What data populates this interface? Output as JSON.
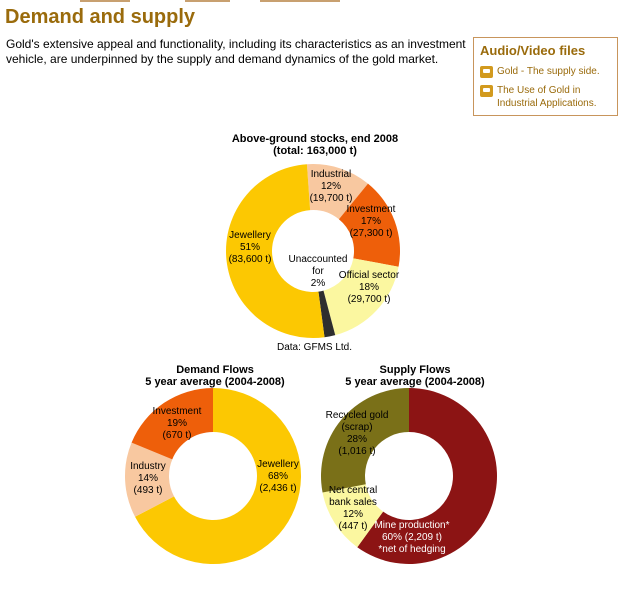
{
  "page": {
    "title": "Demand and supply",
    "intro": "Gold's extensive appeal and functionality, including its characteristics as an investment vehicle, are underpinned by the supply and demand dynamics of the gold market."
  },
  "audio_video": {
    "heading": "Audio/Video files",
    "items": [
      {
        "label": "Gold - The supply side.",
        "icon": "video-icon"
      },
      {
        "label": "The Use of Gold in Industrial Applications.",
        "icon": "video-icon"
      }
    ]
  },
  "chart_data": [
    {
      "type": "pie",
      "title": "Above-ground stocks, end 2008",
      "subtitle": "(total: 163,000 t)",
      "source": "Data: GFMS Ltd.",
      "slices": [
        {
          "name": "Industrial",
          "percent": 12,
          "label": "Industrial\n12%\n(19,700 t)",
          "color": "#f8c8a0"
        },
        {
          "name": "Investment",
          "percent": 17,
          "label": "Investment\n17%\n(27,300 t)",
          "color": "#ee5f0a"
        },
        {
          "name": "Official sector",
          "percent": 18,
          "label": "Official sector\n18%\n(29,700 t)",
          "color": "#fbf7a0"
        },
        {
          "name": "Unaccounted for",
          "percent": 2,
          "label": "Unaccounted\nfor\n2%",
          "color": "#2e2e2e"
        },
        {
          "name": "Jewellery",
          "percent": 51,
          "label": "Jewellery\n51%\n(83,600 t)",
          "color": "#fcc802"
        }
      ]
    },
    {
      "type": "pie",
      "title": "Demand Flows",
      "subtitle": "5 year average (2004-2008)",
      "slices": [
        {
          "name": "Jewellery",
          "percent": 68,
          "label": "Jewellery\n68%\n(2,436 t)",
          "color": "#fcc802"
        },
        {
          "name": "Industry",
          "percent": 14,
          "label": "Industry\n14%\n(493 t)",
          "color": "#f8c8a0"
        },
        {
          "name": "Investment",
          "percent": 19,
          "label": "Investment\n19%\n(670 t)",
          "color": "#ee5f0a"
        }
      ]
    },
    {
      "type": "pie",
      "title": "Supply Flows",
      "subtitle": "5 year average (2004-2008)",
      "slices": [
        {
          "name": "Mine production",
          "percent": 60,
          "label": "Mine production*\n60% (2,209 t)\n*net of hedging",
          "color": "#8c1414"
        },
        {
          "name": "Net central bank sales",
          "percent": 12,
          "label": "Net central\nbank sales\n12%\n(447 t)",
          "color": "#fbf7a0"
        },
        {
          "name": "Recycled gold (scrap)",
          "percent": 28,
          "label": "Recycled gold\n(scrap)\n28%\n(1,016 t)",
          "color": "#7a7018"
        }
      ]
    }
  ]
}
